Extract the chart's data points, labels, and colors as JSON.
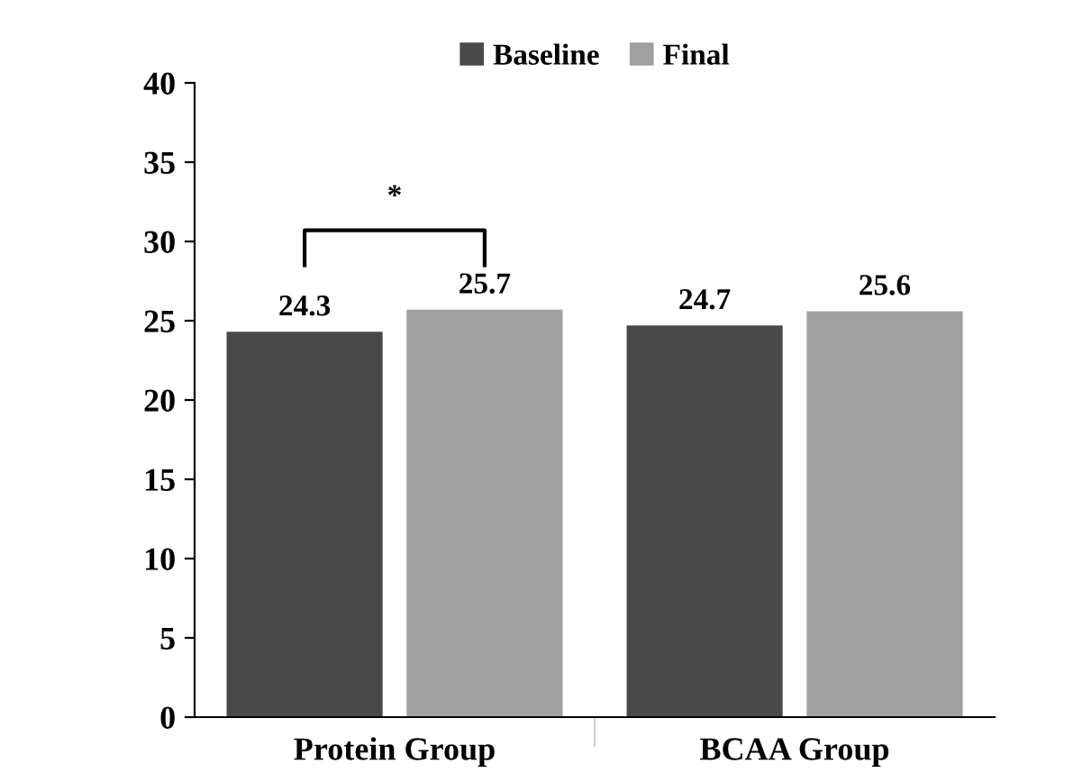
{
  "chart_data": {
    "type": "bar",
    "categories": [
      "Protein Group",
      "BCAA Group"
    ],
    "series": [
      {
        "name": "Baseline",
        "color": "#494949",
        "values": [
          24.3,
          24.7
        ]
      },
      {
        "name": "Final",
        "color": "#a0a0a0",
        "values": [
          25.7,
          25.6
        ]
      }
    ],
    "ylim": [
      0,
      40
    ],
    "yticks": [
      0,
      5,
      10,
      15,
      20,
      25,
      30,
      35,
      40
    ],
    "data_labels": true,
    "grid": false,
    "legend": "top",
    "annotations": [
      "*"
    ]
  }
}
